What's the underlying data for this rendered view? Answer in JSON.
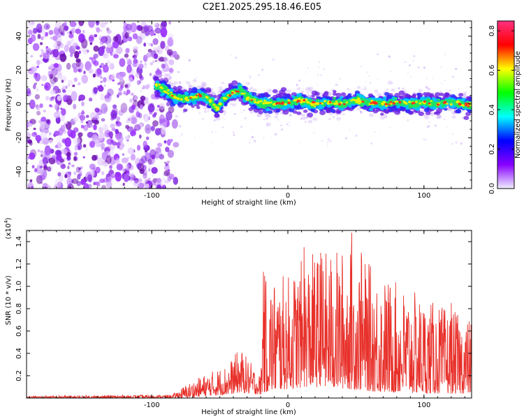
{
  "title": "C2E1.2025.295.18.46.E05",
  "chart_data": [
    {
      "type": "heatmap",
      "name": "spectrogram",
      "xlabel": "Height of straight line (km)",
      "ylabel": "Frequency (Hz)",
      "xlim": [
        -192,
        135
      ],
      "ylim": [
        -50,
        49
      ],
      "xticks": [
        -100,
        0,
        100
      ],
      "xtick_labels": [
        "-100",
        "0",
        "100"
      ],
      "yticks": [
        -40,
        -20,
        0,
        20,
        40
      ],
      "ytick_labels": [
        "-40",
        "-20",
        "0",
        "20",
        "40"
      ],
      "noise_region_km": [
        -192,
        -85
      ],
      "signal_region_km": [
        -97,
        135
      ],
      "signal_center_hz": [
        {
          "x": -97,
          "y": 11
        },
        {
          "x": -90,
          "y": 8
        },
        {
          "x": -84,
          "y": 4
        },
        {
          "x": -75,
          "y": 3
        },
        {
          "x": -65,
          "y": 5
        },
        {
          "x": -58,
          "y": 3
        },
        {
          "x": -52,
          "y": -3
        },
        {
          "x": -48,
          "y": 2
        },
        {
          "x": -42,
          "y": 6
        },
        {
          "x": -35,
          "y": 8
        },
        {
          "x": -30,
          "y": 4
        },
        {
          "x": -22,
          "y": 1
        },
        {
          "x": -10,
          "y": 0
        },
        {
          "x": 0,
          "y": 1
        },
        {
          "x": 10,
          "y": 2
        },
        {
          "x": 20,
          "y": 0
        },
        {
          "x": 30,
          "y": 1
        },
        {
          "x": 40,
          "y": 0
        },
        {
          "x": 50,
          "y": 2
        },
        {
          "x": 60,
          "y": 1
        },
        {
          "x": 70,
          "y": 0
        },
        {
          "x": 80,
          "y": 1
        },
        {
          "x": 90,
          "y": 0
        },
        {
          "x": 100,
          "y": 1
        },
        {
          "x": 110,
          "y": 0
        },
        {
          "x": 120,
          "y": 1
        },
        {
          "x": 135,
          "y": -1
        }
      ],
      "colorbar": {
        "label": "Normalized spectral amplitude",
        "range": [
          0,
          0.85
        ],
        "ticks": [
          "0.0",
          "0.2",
          "0.4",
          "0.6",
          "0.8"
        ],
        "tick_values": [
          0.0,
          0.2,
          0.4,
          0.6,
          0.8
        ],
        "colors": [
          "#f0f0ff",
          "#8800ff",
          "#0000ff",
          "#00ffff",
          "#00ff00",
          "#ffff00",
          "#ff0000",
          "#ff3080"
        ]
      }
    },
    {
      "type": "line",
      "name": "snr",
      "xlabel": "Height of straight line (km)",
      "ylabel": "SNR (10 * v/v)",
      "multiplier_label": "(x10",
      "multiplier_exponent": "4",
      "multiplier_close": ")",
      "xlim": [
        -192,
        135
      ],
      "ylim": [
        0,
        1.5
      ],
      "xticks": [
        -100,
        0,
        100
      ],
      "xtick_labels": [
        "-100",
        "0",
        "100"
      ],
      "yticks": [
        0.2,
        0.4,
        0.6,
        0.8,
        1.0,
        1.2,
        1.4
      ],
      "ytick_labels": [
        "0.2",
        "0.4",
        "0.6",
        "0.8",
        "1.0",
        "1.2",
        "1.4"
      ],
      "color": "#e8302a",
      "envelope": [
        {
          "x": -192,
          "lo": 0.0,
          "hi": 0.02
        },
        {
          "x": -85,
          "lo": 0.0,
          "hi": 0.03
        },
        {
          "x": -75,
          "lo": 0.0,
          "hi": 0.12
        },
        {
          "x": -60,
          "lo": 0.02,
          "hi": 0.22
        },
        {
          "x": -45,
          "lo": 0.03,
          "hi": 0.3
        },
        {
          "x": -35,
          "lo": 0.05,
          "hi": 0.45
        },
        {
          "x": -20,
          "lo": 0.03,
          "hi": 0.2
        },
        {
          "x": -18,
          "lo": 0.05,
          "hi": 1.1
        },
        {
          "x": 0,
          "lo": 0.08,
          "hi": 1.1
        },
        {
          "x": 15,
          "lo": 0.1,
          "hi": 1.3
        },
        {
          "x": 45,
          "lo": 0.08,
          "hi": 1.35
        },
        {
          "x": 70,
          "lo": 0.05,
          "hi": 1.1
        },
        {
          "x": 100,
          "lo": 0.04,
          "hi": 0.9
        },
        {
          "x": 135,
          "lo": 0.04,
          "hi": 0.7
        }
      ],
      "peaks": [
        {
          "x": -18,
          "y": 1.13
        },
        {
          "x": 12,
          "y": 1.35
        },
        {
          "x": 24,
          "y": 1.3
        },
        {
          "x": 47,
          "y": 1.48
        },
        {
          "x": 54,
          "y": 1.3
        },
        {
          "x": 120,
          "y": 0.85
        }
      ]
    }
  ]
}
